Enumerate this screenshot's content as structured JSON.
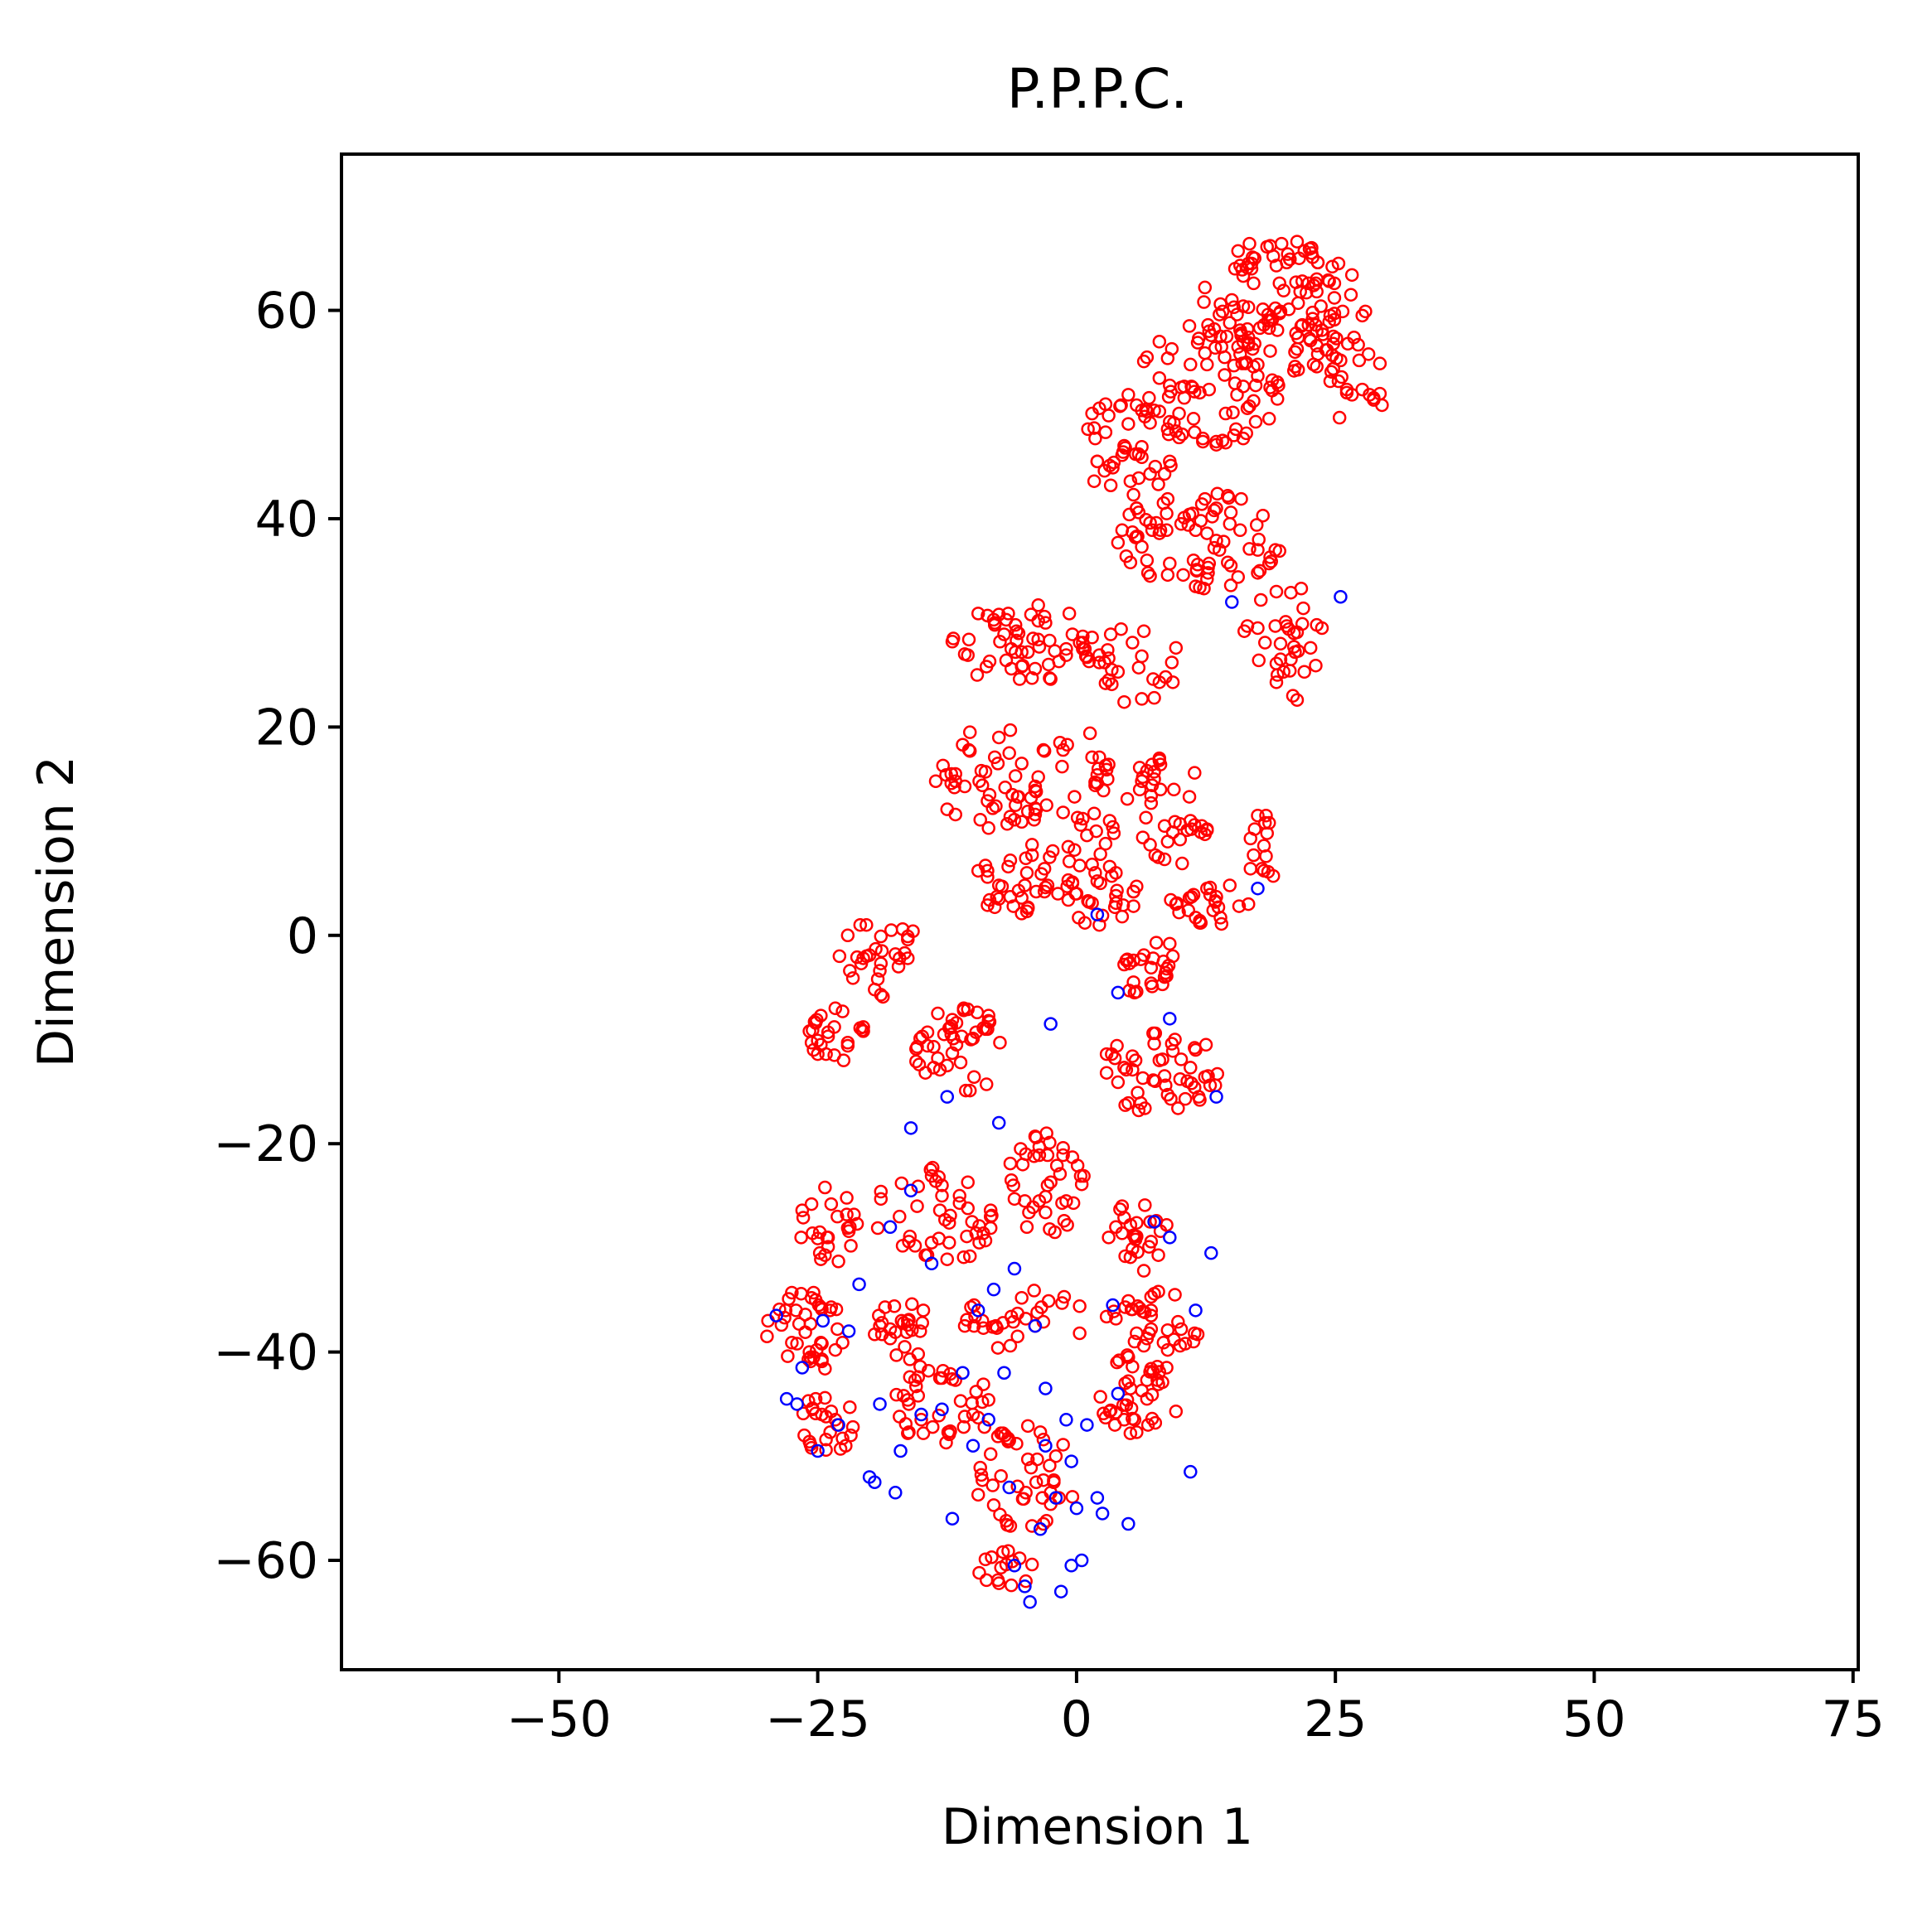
{
  "chart_data": {
    "type": "scatter",
    "title": "P.P.P.C.",
    "xlabel": "Dimension 1",
    "ylabel": "Dimension 2",
    "xlim": [
      -71,
      75.5
    ],
    "ylim": [
      -70.5,
      75
    ],
    "xticks": [
      -50,
      -25,
      0,
      25,
      50,
      75
    ],
    "xtick_labels": [
      "−50",
      "−25",
      "0",
      "25",
      "50",
      "75"
    ],
    "yticks": [
      -60,
      -40,
      -20,
      0,
      20,
      40,
      60
    ],
    "ytick_labels": [
      "−60",
      "−40",
      "−20",
      "0",
      "20",
      "40",
      "60"
    ],
    "grid": false,
    "legend": "none",
    "marker": "hollow-circle",
    "series": [
      {
        "color": "#0000ff",
        "points": [
          [
            -29,
            -36.5
          ],
          [
            -28,
            -44.5
          ],
          [
            -27,
            -45
          ],
          [
            -26.5,
            -41.5
          ],
          [
            -25,
            -49.5
          ],
          [
            -24.5,
            -37
          ],
          [
            -23,
            -47
          ],
          [
            -21,
            -33.5
          ],
          [
            -20,
            -52
          ],
          [
            -19.5,
            -52.5
          ],
          [
            -19,
            -45
          ],
          [
            -17.5,
            -53.5
          ],
          [
            -17,
            -49.5
          ],
          [
            -16,
            -18.5
          ],
          [
            -15,
            -46
          ],
          [
            -14,
            -31.5
          ],
          [
            -13,
            -45.5
          ],
          [
            -12.5,
            -15.5
          ],
          [
            -11,
            -42
          ],
          [
            -10,
            -49
          ],
          [
            -9.5,
            -36
          ],
          [
            -8.5,
            -46.5
          ],
          [
            -7.5,
            -18
          ],
          [
            -7,
            -42
          ],
          [
            -6.5,
            -53
          ],
          [
            -6,
            -60.5
          ],
          [
            -5,
            -62.5
          ],
          [
            -4.5,
            -64
          ],
          [
            -4,
            -37.5
          ],
          [
            -3.5,
            -57
          ],
          [
            -3,
            -43.5
          ],
          [
            -2.5,
            -8.5
          ],
          [
            -2,
            -54
          ],
          [
            -1.5,
            -63
          ],
          [
            -1,
            -46.5
          ],
          [
            -0.5,
            -60.5
          ],
          [
            0,
            -55
          ],
          [
            0.5,
            -60
          ],
          [
            1,
            -47
          ],
          [
            2,
            -54
          ],
          [
            2.5,
            -55.5
          ],
          [
            3.5,
            -35.5
          ],
          [
            4,
            -5.5
          ],
          [
            5,
            -56.5
          ],
          [
            7.5,
            -27.5
          ],
          [
            9,
            -29
          ],
          [
            11,
            -51.5
          ],
          [
            11.5,
            -36
          ],
          [
            13,
            -30.5
          ],
          [
            13.5,
            -15.5
          ],
          [
            15,
            32
          ],
          [
            17.5,
            4.5
          ],
          [
            25.5,
            32.5
          ],
          [
            -8,
            -34
          ],
          [
            -16,
            -24.5
          ],
          [
            -12,
            -56
          ],
          [
            -6,
            -32
          ],
          [
            2,
            2
          ],
          [
            9,
            -8
          ],
          [
            -22,
            -38
          ],
          [
            -3,
            -49
          ],
          [
            4,
            -44
          ],
          [
            -18,
            -28
          ],
          [
            -0.5,
            -50.5
          ]
        ]
      },
      {
        "color": "#ff0000",
        "points": []
      }
    ],
    "density_clusters": [
      {
        "cx": 20,
        "cy": 60,
        "rx": 8,
        "ry": 7,
        "n": 130
      },
      {
        "cx": 13,
        "cy": 53,
        "rx": 7,
        "ry": 6,
        "n": 70
      },
      {
        "cx": 5,
        "cy": 47,
        "rx": 5,
        "ry": 5,
        "n": 50
      },
      {
        "cx": 27,
        "cy": 53,
        "rx": 3,
        "ry": 4,
        "n": 20
      },
      {
        "cx": 12,
        "cy": 38,
        "rx": 8,
        "ry": 5,
        "n": 80
      },
      {
        "cx": 20,
        "cy": 28,
        "rx": 4,
        "ry": 6,
        "n": 35
      },
      {
        "cx": -5,
        "cy": 28,
        "rx": 7,
        "ry": 4,
        "n": 60
      },
      {
        "cx": 6,
        "cy": 26,
        "rx": 4,
        "ry": 4,
        "n": 25
      },
      {
        "cx": -8,
        "cy": 15,
        "rx": 6,
        "ry": 5,
        "n": 50
      },
      {
        "cx": 0,
        "cy": 12,
        "rx": 5,
        "ry": 8,
        "n": 45
      },
      {
        "cx": 9,
        "cy": 12,
        "rx": 4,
        "ry": 6,
        "n": 40
      },
      {
        "cx": -6,
        "cy": 5,
        "rx": 4,
        "ry": 3,
        "n": 30
      },
      {
        "cx": 2,
        "cy": 4,
        "rx": 4,
        "ry": 3,
        "n": 30
      },
      {
        "cx": 13,
        "cy": 3,
        "rx": 4,
        "ry": 2,
        "n": 25
      },
      {
        "cx": 18,
        "cy": 8,
        "rx": 2,
        "ry": 4,
        "n": 15
      },
      {
        "cx": -19,
        "cy": -2,
        "rx": 4,
        "ry": 4,
        "n": 30
      },
      {
        "cx": -23,
        "cy": -10,
        "rx": 3,
        "ry": 3,
        "n": 25
      },
      {
        "cx": 7,
        "cy": -3,
        "rx": 3,
        "ry": 3,
        "n": 25
      },
      {
        "cx": -11,
        "cy": -11,
        "rx": 5,
        "ry": 4,
        "n": 45
      },
      {
        "cx": 8,
        "cy": -13,
        "rx": 6,
        "ry": 4,
        "n": 50
      },
      {
        "cx": -3,
        "cy": -24,
        "rx": 4,
        "ry": 5,
        "n": 40
      },
      {
        "cx": -14,
        "cy": -27,
        "rx": 6,
        "ry": 5,
        "n": 45
      },
      {
        "cx": -24,
        "cy": -28,
        "rx": 3,
        "ry": 4,
        "n": 25
      },
      {
        "cx": 6,
        "cy": -29,
        "rx": 3,
        "ry": 4,
        "n": 25
      },
      {
        "cx": -26,
        "cy": -38,
        "rx": 4,
        "ry": 4,
        "n": 40
      },
      {
        "cx": -17,
        "cy": -38,
        "rx": 3,
        "ry": 3,
        "n": 25
      },
      {
        "cx": -5,
        "cy": -37,
        "rx": 6,
        "ry": 3,
        "n": 30
      },
      {
        "cx": 7,
        "cy": -38,
        "rx": 5,
        "ry": 4,
        "n": 45
      },
      {
        "cx": -24,
        "cy": -47,
        "rx": 3,
        "ry": 3,
        "n": 25
      },
      {
        "cx": -13,
        "cy": -45,
        "rx": 5,
        "ry": 4,
        "n": 40
      },
      {
        "cx": 6,
        "cy": -45,
        "rx": 4,
        "ry": 3,
        "n": 30
      },
      {
        "cx": -5,
        "cy": -52,
        "rx": 5,
        "ry": 5,
        "n": 45
      },
      {
        "cx": -7,
        "cy": -61,
        "rx": 3,
        "ry": 2,
        "n": 15
      }
    ]
  }
}
